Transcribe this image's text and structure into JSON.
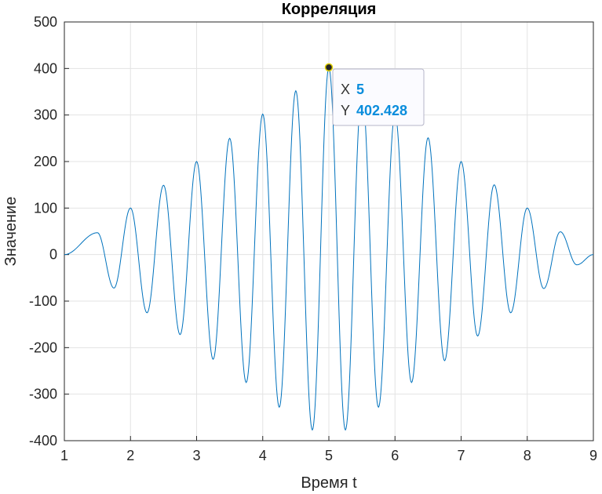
{
  "chart_data": {
    "type": "line",
    "title": "Корреляция",
    "xlabel": "Время t",
    "ylabel": "Значение",
    "xlim": [
      1,
      9
    ],
    "ylim": [
      -400,
      500
    ],
    "xticks": [
      "1",
      "2",
      "3",
      "4",
      "5",
      "6",
      "7",
      "8",
      "9"
    ],
    "yticks": [
      "500",
      "400",
      "300",
      "200",
      "100",
      "0",
      "-100",
      "-200",
      "-300",
      "-400"
    ],
    "grid": true,
    "line_color": "#0072BD",
    "series": [
      {
        "x": [
          1.0,
          1.5,
          1.75,
          2.0,
          2.25,
          2.5,
          2.75,
          3.0,
          3.25,
          3.5,
          3.75,
          4.0,
          4.25,
          4.5,
          4.75,
          5.0,
          5.25,
          5.5,
          5.75,
          6.0,
          6.25,
          6.5,
          6.75,
          7.0,
          7.25,
          7.5,
          7.75,
          8.0,
          8.25,
          8.5,
          8.75,
          9.0
        ],
        "y": [
          0,
          47,
          -72,
          100,
          -125,
          149,
          -172,
          200,
          -225,
          250,
          -275,
          302,
          -328,
          352,
          -377,
          402,
          -377,
          352,
          -328,
          302,
          -275,
          251,
          -228,
          200,
          -175,
          150,
          -125,
          100,
          -73,
          49,
          -22,
          0
        ]
      }
    ],
    "datatip": {
      "x_key": "X",
      "x_value": "5",
      "y_key": "Y",
      "y_value": "402.428",
      "point_x": 5,
      "point_y": 402.428
    }
  }
}
